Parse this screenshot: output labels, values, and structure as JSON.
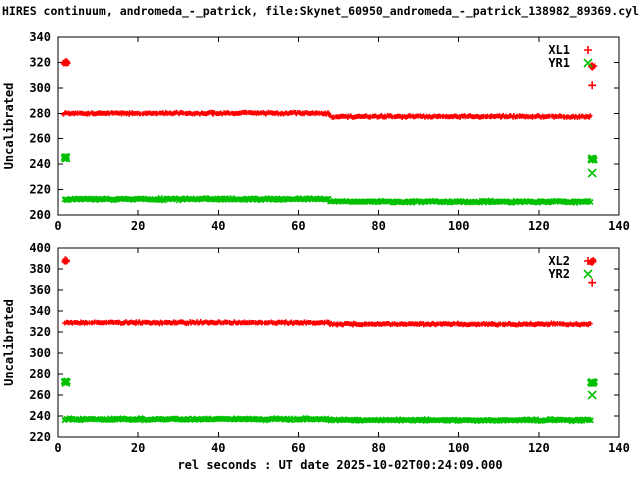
{
  "title": "HIRES continuum, andromeda_-_patrick, file:Skynet_60950_andromeda_-_patrick_138982_89369.cyl",
  "xlabel": "rel seconds : UT date 2025-10-02T00:24:09.000",
  "colors": {
    "red": "#ff0000",
    "green": "#00c000",
    "axis": "#000000",
    "background": "#ffffff"
  },
  "chart_data": [
    {
      "type": "scatter",
      "panel": "top",
      "ylabel": "Uncalibrated",
      "xlim": [
        0,
        140
      ],
      "ylim": [
        200,
        340
      ],
      "xtick_step": 20,
      "ytick_step": 20,
      "grid": false,
      "legend_position": "top-right-inside",
      "series": [
        {
          "name": "XL1",
          "marker": "plus",
          "color": "#ff0000",
          "bands": [
            {
              "x_from": 1.5,
              "x_to": 68,
              "y": 280,
              "y_noise": 1.2
            },
            {
              "x_from": 68,
              "x_to": 133.2,
              "y": 277.5,
              "y_noise": 1.2
            }
          ],
          "clusters": [
            {
              "x": 2,
              "y": 320,
              "x_spread": 0.9,
              "y_spread": 2.2,
              "count": 20
            },
            {
              "x": 133.3,
              "y": 317,
              "x_spread": 0.8,
              "y_spread": 2.2,
              "count": 16
            }
          ],
          "outliers": [
            {
              "x": 133.3,
              "y": 302
            }
          ]
        },
        {
          "name": "YR1",
          "marker": "cross",
          "color": "#00c000",
          "bands": [
            {
              "x_from": 1.5,
              "x_to": 68,
              "y": 212.5,
              "y_noise": 1.3
            },
            {
              "x_from": 68,
              "x_to": 133.2,
              "y": 210.5,
              "y_noise": 1.3
            }
          ],
          "clusters": [
            {
              "x": 2,
              "y": 245,
              "x_spread": 0.9,
              "y_spread": 2.2,
              "count": 20
            },
            {
              "x": 133.3,
              "y": 244,
              "x_spread": 0.9,
              "y_spread": 2.2,
              "count": 16
            }
          ],
          "outliers": [
            {
              "x": 133.3,
              "y": 233
            }
          ]
        }
      ]
    },
    {
      "type": "scatter",
      "panel": "bottom",
      "ylabel": "Uncalibrated",
      "xlim": [
        0,
        140
      ],
      "ylim": [
        220,
        400
      ],
      "xtick_step": 20,
      "ytick_step": 20,
      "grid": false,
      "legend_position": "top-right-inside",
      "series": [
        {
          "name": "XL2",
          "marker": "plus",
          "color": "#ff0000",
          "bands": [
            {
              "x_from": 1.5,
              "x_to": 68,
              "y": 329,
              "y_noise": 1.4
            },
            {
              "x_from": 68,
              "x_to": 133.2,
              "y": 327.5,
              "y_noise": 1.4
            }
          ],
          "clusters": [
            {
              "x": 2,
              "y": 388,
              "x_spread": 0.9,
              "y_spread": 2.6,
              "count": 20
            },
            {
              "x": 133.3,
              "y": 387,
              "x_spread": 0.8,
              "y_spread": 2.6,
              "count": 16
            }
          ],
          "outliers": [
            {
              "x": 133.3,
              "y": 367
            }
          ]
        },
        {
          "name": "YR2",
          "marker": "cross",
          "color": "#00c000",
          "bands": [
            {
              "x_from": 1.5,
              "x_to": 68,
              "y": 237,
              "y_noise": 1.5
            },
            {
              "x_from": 68,
              "x_to": 133.2,
              "y": 236,
              "y_noise": 1.5
            }
          ],
          "clusters": [
            {
              "x": 2,
              "y": 272,
              "x_spread": 0.9,
              "y_spread": 2.6,
              "count": 20
            },
            {
              "x": 133.3,
              "y": 272,
              "x_spread": 0.9,
              "y_spread": 2.6,
              "count": 16
            }
          ],
          "outliers": [
            {
              "x": 133.3,
              "y": 260
            }
          ]
        }
      ]
    }
  ]
}
